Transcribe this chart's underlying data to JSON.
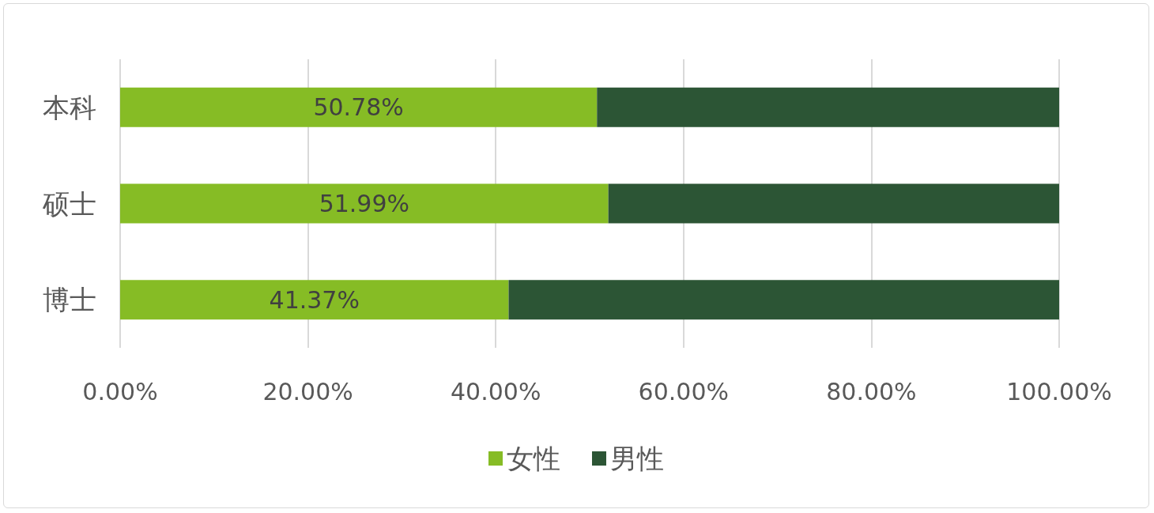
{
  "chart_data": {
    "type": "bar",
    "orientation": "horizontal",
    "stacked": true,
    "categories": [
      "本科",
      "硕士",
      "博士"
    ],
    "series": [
      {
        "name": "女性",
        "color": "#86bc25",
        "values": [
          50.78,
          51.99,
          41.37
        ],
        "value_labels": [
          "50.78%",
          "51.99%",
          "41.37%"
        ]
      },
      {
        "name": "男性",
        "color": "#2c5535",
        "values": [
          49.22,
          48.01,
          58.63
        ]
      }
    ],
    "xlim": [
      0,
      100
    ],
    "xticks": [
      {
        "value": 0,
        "label": "0.00%"
      },
      {
        "value": 20,
        "label": "20.00%"
      },
      {
        "value": 40,
        "label": "40.00%"
      },
      {
        "value": 60,
        "label": "60.00%"
      },
      {
        "value": 80,
        "label": "80.00%"
      },
      {
        "value": 100,
        "label": "100.00%"
      }
    ],
    "grid": "x",
    "legend": "bottom"
  }
}
